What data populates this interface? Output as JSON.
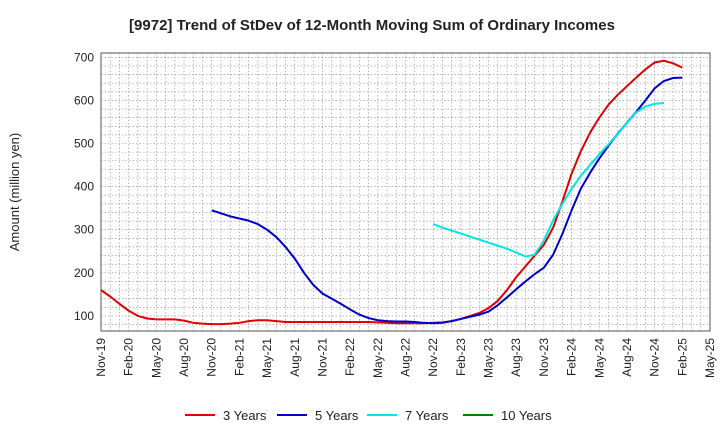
{
  "chart_data": {
    "type": "line",
    "title": "[9972]  Trend of StDev of 12-Month Moving Sum of Ordinary Incomes",
    "xlabel": "",
    "ylabel": "Amount (million yen)",
    "ylim": [
      65,
      710
    ],
    "yticks": [
      100,
      200,
      300,
      400,
      500,
      600,
      700
    ],
    "x_range": [
      "Nov-19",
      "May-25"
    ],
    "x_ticks": [
      "Nov-19",
      "Feb-20",
      "May-20",
      "Aug-20",
      "Nov-20",
      "Feb-21",
      "May-21",
      "Aug-21",
      "Nov-21",
      "Feb-22",
      "May-22",
      "Aug-22",
      "Nov-22",
      "Feb-23",
      "May-23",
      "Aug-23",
      "Nov-23",
      "Feb-24",
      "May-24",
      "Aug-24",
      "Nov-24",
      "Feb-25",
      "May-25"
    ],
    "grid": true,
    "legend_position": "bottom",
    "series": [
      {
        "name": "3 Years",
        "color": "#e00000",
        "start": "Nov-19",
        "values": [
          160,
          145,
          128,
          112,
          100,
          94,
          92,
          92,
          92,
          89,
          84,
          82,
          81,
          81,
          82,
          84,
          88,
          90,
          90,
          88,
          86,
          86,
          86,
          86,
          86,
          86,
          86,
          86,
          86,
          86,
          85,
          84,
          83,
          83,
          83,
          83,
          84,
          85,
          88,
          93,
          100,
          107,
          118,
          135,
          160,
          190,
          215,
          240,
          265,
          305,
          365,
          430,
          482,
          525,
          560,
          590,
          613,
          633,
          653,
          672,
          688,
          692,
          686,
          676
        ]
      },
      {
        "name": "5 Years",
        "color": "#0000cc",
        "start": "Nov-20",
        "values": [
          345,
          338,
          331,
          326,
          321,
          313,
          300,
          283,
          260,
          233,
          200,
          172,
          152,
          140,
          128,
          115,
          103,
          95,
          90,
          88,
          87,
          87,
          86,
          84,
          83,
          84,
          88,
          93,
          98,
          103,
          110,
          125,
          143,
          162,
          180,
          197,
          212,
          242,
          290,
          345,
          395,
          432,
          465,
          495,
          523,
          548,
          573,
          600,
          628,
          645,
          652,
          653
        ]
      },
      {
        "name": "7 Years",
        "color": "#00e5e5",
        "start": "Nov-22",
        "values": [
          313,
          305,
          298,
          291,
          284,
          277,
          270,
          263,
          256,
          247,
          238,
          242,
          275,
          322,
          360,
          395,
          425,
          450,
          475,
          498,
          522,
          548,
          572,
          586,
          592,
          594
        ]
      },
      {
        "name": "10 Years",
        "color": "#008000",
        "start": "Nov-19",
        "values": []
      }
    ]
  }
}
